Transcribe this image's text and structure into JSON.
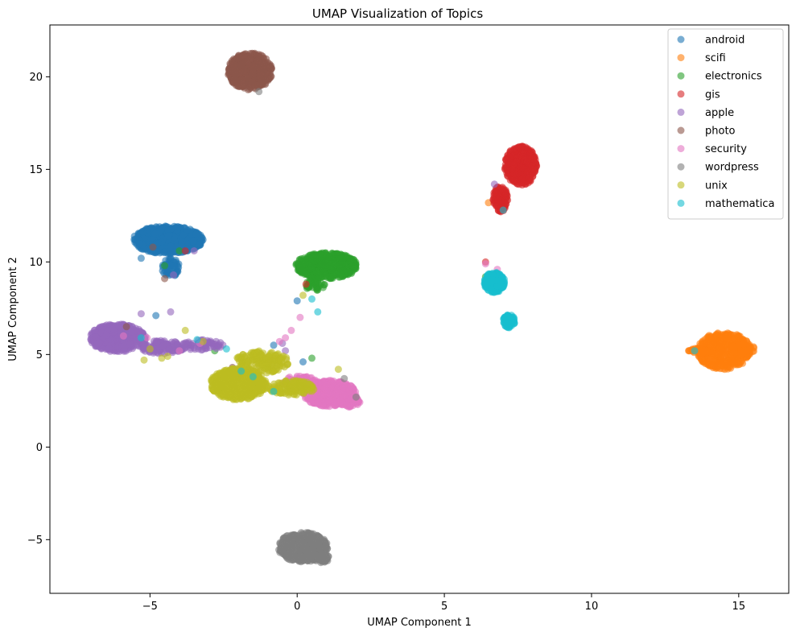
{
  "chart_data": {
    "type": "scatter",
    "title": "UMAP Visualization of Topics",
    "xlabel": "UMAP Component 1",
    "ylabel": "UMAP Component 2",
    "xlim": [
      -8.4,
      16.7
    ],
    "ylim": [
      -7.9,
      22.8
    ],
    "xticks": [
      -5,
      0,
      5,
      10,
      15
    ],
    "yticks": [
      -5,
      0,
      5,
      10,
      15,
      20
    ],
    "grid": false,
    "legend": "top-right",
    "series": [
      {
        "name": "android",
        "color": "#1f77b4",
        "clusters": [
          {
            "cx": -4.4,
            "cy": 11.2,
            "rx": 1.2,
            "ry": 0.75,
            "n": 600
          },
          {
            "cx": -4.3,
            "cy": 9.7,
            "rx": 0.3,
            "ry": 0.5,
            "n": 60
          }
        ],
        "points": [
          [
            -4.8,
            7.1
          ],
          [
            -5.3,
            10.2
          ],
          [
            -3.2,
            11.2
          ],
          [
            0.0,
            7.9
          ],
          [
            -0.8,
            5.5
          ],
          [
            0.2,
            4.6
          ]
        ]
      },
      {
        "name": "scifi",
        "color": "#ff7f0e",
        "clusters": [
          {
            "cx": 14.5,
            "cy": 5.2,
            "rx": 0.9,
            "ry": 1.0,
            "n": 450
          },
          {
            "cx": 15.1,
            "cy": 5.3,
            "rx": 0.45,
            "ry": 0.3,
            "n": 80
          },
          {
            "cx": 13.7,
            "cy": 5.2,
            "rx": 0.4,
            "ry": 0.15,
            "n": 40
          }
        ],
        "points": [
          [
            13.3,
            5.2
          ],
          [
            6.5,
            13.2
          ]
        ]
      },
      {
        "name": "electronics",
        "color": "#2ca02c",
        "clusters": [
          {
            "cx": 1.0,
            "cy": 9.8,
            "rx": 1.05,
            "ry": 0.7,
            "n": 500
          },
          {
            "cx": 0.6,
            "cy": 8.8,
            "rx": 0.35,
            "ry": 0.35,
            "n": 40
          }
        ],
        "points": [
          [
            6.4,
            9.2
          ],
          [
            6.5,
            8.8
          ],
          [
            -2.8,
            5.2
          ],
          [
            -4.0,
            10.6
          ],
          [
            0.5,
            4.8
          ],
          [
            -1.0,
            4.3
          ],
          [
            0.8,
            3.2
          ],
          [
            -4.5,
            9.8
          ],
          [
            7.0,
            12.9
          ]
        ]
      },
      {
        "name": "gis",
        "color": "#d62728",
        "clusters": [
          {
            "cx": 7.6,
            "cy": 15.2,
            "rx": 0.55,
            "ry": 1.05,
            "n": 400
          },
          {
            "cx": 6.9,
            "cy": 13.4,
            "rx": 0.25,
            "ry": 0.7,
            "n": 120
          }
        ],
        "points": [
          [
            0.3,
            8.8
          ],
          [
            -0.9,
            4.7
          ],
          [
            6.4,
            10.0
          ],
          [
            -3.8,
            10.6
          ]
        ]
      },
      {
        "name": "apple",
        "color": "#9467bd",
        "clusters": [
          {
            "cx": -6.1,
            "cy": 5.9,
            "rx": 0.95,
            "ry": 0.75,
            "n": 450
          },
          {
            "cx": -4.6,
            "cy": 5.4,
            "rx": 0.8,
            "ry": 0.35,
            "n": 120
          },
          {
            "cx": -3.2,
            "cy": 5.5,
            "rx": 0.7,
            "ry": 0.3,
            "n": 60
          }
        ],
        "points": [
          [
            -4.3,
            7.3
          ],
          [
            -5.3,
            7.2
          ],
          [
            -3.5,
            10.6
          ],
          [
            -4.2,
            9.3
          ],
          [
            -0.5,
            5.6
          ],
          [
            -0.4,
            5.2
          ],
          [
            6.7,
            14.2
          ]
        ]
      },
      {
        "name": "photo",
        "color": "#8c564b",
        "clusters": [
          {
            "cx": -1.6,
            "cy": 20.3,
            "rx": 0.75,
            "ry": 1.0,
            "n": 500
          }
        ],
        "points": [
          [
            -4.5,
            9.1
          ],
          [
            -4.9,
            10.8
          ],
          [
            -2.2,
            4.3
          ],
          [
            -5.8,
            6.5
          ]
        ]
      },
      {
        "name": "security",
        "color": "#e377c2",
        "clusters": [
          {
            "cx": 1.1,
            "cy": 2.9,
            "rx": 0.9,
            "ry": 0.7,
            "n": 450
          },
          {
            "cx": 1.8,
            "cy": 2.5,
            "rx": 0.35,
            "ry": 0.35,
            "n": 80
          },
          {
            "cx": 0.1,
            "cy": 3.5,
            "rx": 0.6,
            "ry": 0.35,
            "n": 80
          }
        ],
        "points": [
          [
            0.1,
            7.0
          ],
          [
            -0.2,
            6.3
          ],
          [
            -0.4,
            5.9
          ],
          [
            -0.6,
            5.7
          ],
          [
            -5.9,
            6.0
          ],
          [
            -5.1,
            5.9
          ],
          [
            -3.3,
            5.6
          ],
          [
            -4.0,
            5.2
          ],
          [
            6.8,
            9.6
          ],
          [
            6.4,
            9.9
          ]
        ]
      },
      {
        "name": "wordpress",
        "color": "#7f7f7f",
        "clusters": [
          {
            "cx": 0.2,
            "cy": -5.4,
            "rx": 0.85,
            "ry": 0.8,
            "n": 450
          },
          {
            "cx": 0.8,
            "cy": -6.0,
            "rx": 0.3,
            "ry": 0.25,
            "n": 60
          }
        ],
        "points": [
          [
            -1.3,
            19.2
          ],
          [
            1.6,
            3.7
          ],
          [
            2.0,
            2.7
          ]
        ]
      },
      {
        "name": "unix",
        "color": "#bcbd22",
        "clusters": [
          {
            "cx": -2.0,
            "cy": 3.4,
            "rx": 0.95,
            "ry": 0.85,
            "n": 500
          },
          {
            "cx": -1.2,
            "cy": 4.6,
            "rx": 0.9,
            "ry": 0.6,
            "n": 150
          },
          {
            "cx": -0.2,
            "cy": 3.2,
            "rx": 0.8,
            "ry": 0.4,
            "n": 120
          }
        ],
        "points": [
          [
            -2.8,
            3.8
          ],
          [
            -4.6,
            4.8
          ],
          [
            -4.4,
            4.9
          ],
          [
            -5.0,
            5.3
          ],
          [
            -3.8,
            6.3
          ],
          [
            0.2,
            8.2
          ],
          [
            -3.2,
            5.7
          ],
          [
            -5.2,
            4.7
          ],
          [
            1.4,
            4.2
          ]
        ]
      },
      {
        "name": "mathematica",
        "color": "#17becf",
        "clusters": [
          {
            "cx": 6.7,
            "cy": 8.9,
            "rx": 0.35,
            "ry": 0.55,
            "n": 250
          },
          {
            "cx": 7.2,
            "cy": 6.8,
            "rx": 0.2,
            "ry": 0.35,
            "n": 80
          }
        ],
        "points": [
          [
            -2.4,
            5.3
          ],
          [
            -3.4,
            5.8
          ],
          [
            -5.3,
            5.9
          ],
          [
            0.5,
            8.0
          ],
          [
            0.7,
            7.3
          ],
          [
            -0.8,
            3.0
          ],
          [
            -1.5,
            3.8
          ],
          [
            7.0,
            12.8
          ],
          [
            13.5,
            5.2
          ],
          [
            -1.9,
            4.1
          ]
        ]
      }
    ]
  }
}
